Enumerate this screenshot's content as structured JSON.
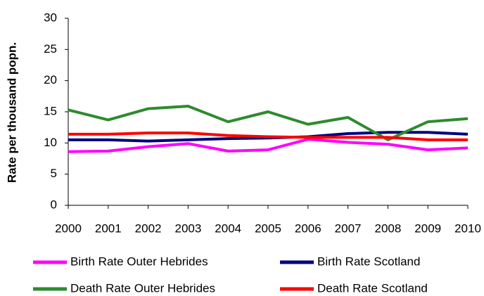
{
  "chart_data": {
    "type": "line",
    "y_label": "Rate per thousand popn.",
    "categories": [
      "2000",
      "2001",
      "2002",
      "2003",
      "2004",
      "2005",
      "2006",
      "2007",
      "2008",
      "2009",
      "2010"
    ],
    "series": [
      {
        "name": "Birth Rate Outer Hebrides",
        "color": "#ff00ff",
        "values": [
          8.6,
          8.7,
          9.4,
          9.9,
          8.7,
          8.9,
          10.6,
          10.1,
          9.8,
          8.9,
          9.2
        ]
      },
      {
        "name": "Birth Rate Scotland",
        "color": "#000080",
        "values": [
          10.5,
          10.5,
          10.3,
          10.5,
          10.7,
          10.8,
          11.0,
          11.5,
          11.7,
          11.7,
          11.4
        ]
      },
      {
        "name": "Death Rate Outer Hebrides",
        "color": "#2e8b2e",
        "values": [
          15.3,
          13.7,
          15.5,
          15.9,
          13.4,
          15.0,
          13.0,
          14.1,
          10.5,
          13.4,
          13.9
        ]
      },
      {
        "name": "Death Rate Scotland",
        "color": "#ff0000",
        "values": [
          11.4,
          11.4,
          11.6,
          11.6,
          11.2,
          11.0,
          10.9,
          10.9,
          10.9,
          10.5,
          10.5
        ]
      }
    ],
    "ylim": [
      0,
      30
    ],
    "yticks": [
      0,
      5,
      10,
      15,
      20,
      25,
      30
    ],
    "grid": false,
    "legend": "bottom"
  }
}
